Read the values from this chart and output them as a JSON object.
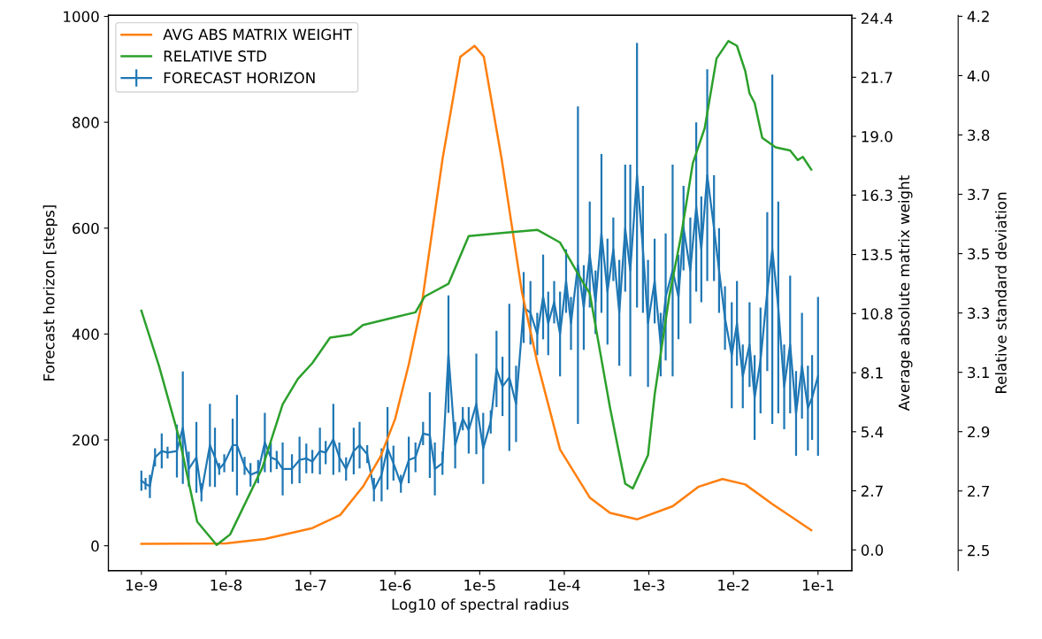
{
  "chart_data": {
    "type": "line",
    "xlabel": "Log10 of spectral radius",
    "ylabel": "Forecast horizon [steps]",
    "y2label": "Average absolute matrix weight",
    "y3label": "Relative standard deviation",
    "xlim": [
      4.07e-10,
      0.251
    ],
    "log": "x",
    "xticks": [
      {
        "value": 1e-09,
        "label": "1e-9"
      },
      {
        "value": 1e-08,
        "label": "1e-8"
      },
      {
        "value": 1e-07,
        "label": "1e-7"
      },
      {
        "value": 1e-06,
        "label": "1e-6"
      },
      {
        "value": 1e-05,
        "label": "1e-5"
      },
      {
        "value": 0.0001,
        "label": "1e-4"
      },
      {
        "value": 0.001,
        "label": "1e-3"
      },
      {
        "value": 0.01,
        "label": "1e-2"
      },
      {
        "value": 0.1,
        "label": "1e-1"
      }
    ],
    "ylim": [
      -47,
      1002
    ],
    "yticks": [
      0,
      200,
      400,
      600,
      800,
      1000
    ],
    "y2lim": [
      -0.95,
      24.5
    ],
    "y2ticks": [
      {
        "value": 0,
        "label": "0.0"
      },
      {
        "value": 2.708,
        "label": "2.7"
      },
      {
        "value": 5.416,
        "label": "5.4"
      },
      {
        "value": 8.123,
        "label": "8.1"
      },
      {
        "value": 10.831,
        "label": "10.8"
      },
      {
        "value": 13.539,
        "label": "13.5"
      },
      {
        "value": 16.26,
        "label": "16.3"
      },
      {
        "value": 18.954,
        "label": "19.0"
      },
      {
        "value": 21.662,
        "label": "21.7"
      },
      {
        "value": 24.37,
        "label": "24.4"
      }
    ],
    "y3lim": [
      2.466,
      4.216
    ],
    "y3ticks": [
      {
        "value": 2.53,
        "label": "2.5"
      },
      {
        "value": 2.717,
        "label": "2.7"
      },
      {
        "value": 2.904,
        "label": "2.9"
      },
      {
        "value": 3.091,
        "label": "3.1"
      },
      {
        "value": 3.278,
        "label": "3.3"
      },
      {
        "value": 3.465,
        "label": "3.5"
      },
      {
        "value": 3.652,
        "label": "3.7"
      },
      {
        "value": 3.839,
        "label": "3.8"
      },
      {
        "value": 4.026,
        "label": "4.0"
      },
      {
        "value": 4.213,
        "label": "4.2"
      }
    ],
    "grid": false,
    "legend": "top left",
    "marker": "none",
    "line_style": "solid",
    "series": [
      {
        "name": "AVG ABS MATRIX WEIGHT",
        "color": "#ff7f0e",
        "axis": "y2",
        "x": [
          1e-09,
          1e-08,
          2.88e-08,
          1.05e-07,
          2.24e-07,
          4.17e-07,
          6.76e-07,
          1e-06,
          1.45e-06,
          2.09e-06,
          3.63e-06,
          5.89e-06,
          8.71e-06,
          1.12e-05,
          1.82e-05,
          3.16e-05,
          4.79e-05,
          8.91e-05,
          0.0002,
          0.000347,
          0.000724,
          0.00191,
          0.00389,
          0.00741,
          0.0138,
          0.0288,
          0.0832
        ],
        "values": [
          0.28,
          0.3,
          0.5,
          1.0,
          1.6,
          2.9,
          4.3,
          6.0,
          8.5,
          11.4,
          17.9,
          22.6,
          23.1,
          22.6,
          17.9,
          11.8,
          8.6,
          4.6,
          2.4,
          1.7,
          1.4,
          2.0,
          2.9,
          3.25,
          3.0,
          2.1,
          0.9
        ]
      },
      {
        "name": "RELATIVE STD",
        "color": "#2ca02c",
        "axis": "y3",
        "x": [
          1e-09,
          1.62e-09,
          2.82e-09,
          4.57e-09,
          7.76e-09,
          1.12e-08,
          2.69e-08,
          4.68e-08,
          7.08e-08,
          1.05e-07,
          1.7e-07,
          3.02e-07,
          4.17e-07,
          8.51e-07,
          1.74e-06,
          2.24e-06,
          4.27e-06,
          7.41e-06,
          1.82e-05,
          4.79e-05,
          8.91e-05,
          0.00017,
          0.0002,
          0.000347,
          0.000525,
          0.000646,
          0.000977,
          0.00117,
          0.00174,
          0.0024,
          0.00331,
          0.00457,
          0.00631,
          0.00871,
          0.011,
          0.0138,
          0.0155,
          0.0178,
          0.0219,
          0.0316,
          0.0468,
          0.0575,
          0.0661,
          0.0832
        ],
        "values": [
          3.285,
          3.11,
          2.88,
          2.62,
          2.547,
          2.58,
          2.79,
          2.99,
          3.07,
          3.12,
          3.2,
          3.21,
          3.24,
          3.26,
          3.28,
          3.33,
          3.37,
          3.52,
          3.53,
          3.54,
          3.5,
          3.37,
          3.34,
          2.98,
          2.74,
          2.725,
          2.83,
          3.02,
          3.33,
          3.52,
          3.75,
          3.86,
          4.08,
          4.135,
          4.12,
          4.04,
          3.97,
          3.94,
          3.83,
          3.8,
          3.79,
          3.76,
          3.77,
          3.73
        ]
      },
      {
        "name": "FORECAST HORIZON",
        "color": "#1f77b4",
        "axis": "y",
        "x": [
          1e-09,
          1.12e-09,
          1.26e-09,
          1.45e-09,
          1.74e-09,
          2.04e-09,
          2.63e-09,
          3.09e-09,
          3.63e-09,
          4.47e-09,
          5.13e-09,
          6.46e-09,
          7.41e-09,
          8.32e-09,
          9.55e-09,
          1.2e-08,
          1.35e-08,
          1.66e-08,
          1.95e-08,
          2.4e-08,
          2.88e-08,
          3.39e-08,
          3.98e-08,
          4.68e-08,
          6.03e-08,
          7.41e-08,
          8.91e-08,
          1.05e-07,
          1.29e-07,
          1.51e-07,
          1.86e-07,
          2.19e-07,
          2.63e-07,
          3.24e-07,
          3.8e-07,
          4.68e-07,
          5.62e-07,
          6.92e-07,
          8.13e-07,
          9.55e-07,
          1.17e-06,
          1.45e-06,
          1.74e-06,
          2.14e-06,
          2.57e-06,
          2.95e-06,
          3.63e-06,
          4.27e-06,
          5.13e-06,
          6.31e-06,
          7.41e-06,
          9.12e-06,
          1.1e-05,
          1.35e-05,
          1.58e-05,
          1.86e-05,
          2.24e-05,
          2.69e-05,
          3.31e-05,
          3.98e-05,
          4.79e-05,
          5.62e-05,
          6.46e-05,
          7.59e-05,
          8.91e-05,
          0.000105,
          0.00012,
          0.000145,
          0.00017,
          0.0002,
          0.000234,
          0.000275,
          0.000324,
          0.00038,
          0.000447,
          0.000525,
          0.000603,
          0.000724,
          0.000851,
          0.000977,
          0.00117,
          0.00138,
          0.00158,
          0.00191,
          0.00224,
          0.00257,
          0.00309,
          0.00363,
          0.00417,
          0.0049,
          0.00589,
          0.00676,
          0.00794,
          0.00955,
          0.011,
          0.0129,
          0.0155,
          0.0178,
          0.0209,
          0.0251,
          0.0288,
          0.0339,
          0.0398,
          0.0468,
          0.055,
          0.0646,
          0.0759,
          0.0851,
          0.1
        ],
        "values": [
          123,
          117,
          112,
          167,
          179,
          176,
          179,
          223,
          145,
          167,
          101,
          190,
          167,
          145,
          156,
          190,
          190,
          151,
          134,
          140,
          195,
          167,
          162,
          145,
          145,
          162,
          165,
          159,
          179,
          176,
          201,
          167,
          145,
          179,
          190,
          173,
          106,
          134,
          184,
          156,
          117,
          162,
          167,
          212,
          209,
          145,
          156,
          362,
          190,
          240,
          218,
          268,
          184,
          234,
          334,
          301,
          318,
          268,
          450,
          440,
          400,
          470,
          420,
          460,
          400,
          500,
          420,
          530,
          450,
          550,
          460,
          590,
          480,
          560,
          440,
          600,
          520,
          700,
          560,
          420,
          500,
          380,
          470,
          520,
          470,
          600,
          520,
          640,
          560,
          700,
          600,
          520,
          430,
          360,
          420,
          320,
          380,
          280,
          350,
          480,
          560,
          450,
          300,
          380,
          250,
          340,
          260,
          280,
          320
        ],
        "errors": [
          19,
          11,
          22,
          17,
          33,
          11,
          50,
          106,
          33,
          67,
          17,
          78,
          56,
          11,
          17,
          50,
          95,
          17,
          22,
          22,
          56,
          28,
          17,
          50,
          28,
          44,
          28,
          22,
          44,
          22,
          67,
          28,
          22,
          44,
          44,
          17,
          22,
          50,
          78,
          33,
          17,
          44,
          28,
          22,
          81,
          50,
          22,
          111,
          44,
          22,
          44,
          95,
          67,
          22,
          72,
          56,
          139,
          72,
          67,
          60,
          40,
          80,
          60,
          40,
          80,
          60,
          50,
          300,
          80,
          100,
          60,
          150,
          100,
          60,
          100,
          120,
          200,
          250,
          120,
          120,
          80,
          60,
          120,
          200,
          80,
          80,
          100,
          160,
          100,
          200,
          100,
          80,
          60,
          100,
          80,
          60,
          80,
          80,
          100,
          150,
          330,
          200,
          80,
          130,
          80,
          100,
          80,
          80,
          150
        ]
      }
    ]
  }
}
